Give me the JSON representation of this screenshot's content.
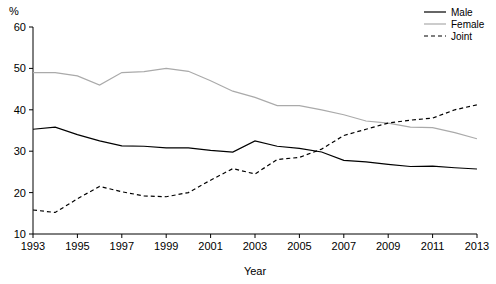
{
  "chart_data": {
    "type": "line",
    "x_label": "Year",
    "y_label": "%",
    "x": [
      1993,
      1994,
      1995,
      1996,
      1997,
      1998,
      1999,
      2000,
      2001,
      2002,
      2003,
      2004,
      2005,
      2006,
      2007,
      2008,
      2009,
      2010,
      2011,
      2012,
      2013
    ],
    "series": [
      {
        "name": "Male",
        "color": "#000000",
        "line_style": "solid",
        "values": [
          35.3,
          35.8,
          34,
          32.5,
          31.3,
          31.2,
          30.8,
          30.8,
          30.2,
          29.8,
          32.5,
          31.2,
          30.7,
          29.8,
          27.8,
          27.4,
          26.8,
          26.3,
          26.4,
          26,
          25.7
        ]
      },
      {
        "name": "Female",
        "color": "#aaaaaa",
        "line_style": "solid",
        "values": [
          49,
          49,
          48.2,
          46,
          49,
          49.2,
          50,
          49.3,
          47,
          44.5,
          43,
          41,
          41,
          40,
          38.8,
          37.3,
          36.8,
          35.8,
          35.7,
          34.5,
          33
        ]
      },
      {
        "name": "Joint",
        "color": "#000000",
        "line_style": "dashed",
        "values": [
          15.8,
          15.2,
          18.5,
          21.5,
          20.2,
          19.2,
          19,
          20,
          23,
          25.8,
          24.5,
          28,
          28.5,
          30.5,
          33.8,
          35.3,
          36.8,
          37.5,
          38,
          40,
          41.2
        ]
      }
    ],
    "xlim": [
      1993,
      2013
    ],
    "xticks": [
      1993,
      1995,
      1997,
      1999,
      2001,
      2003,
      2005,
      2007,
      2009,
      2011,
      2013
    ],
    "ylim": [
      10,
      60
    ],
    "yticks": [
      10,
      20,
      30,
      40,
      50,
      60
    ],
    "grid": false,
    "legend": "top-right"
  }
}
